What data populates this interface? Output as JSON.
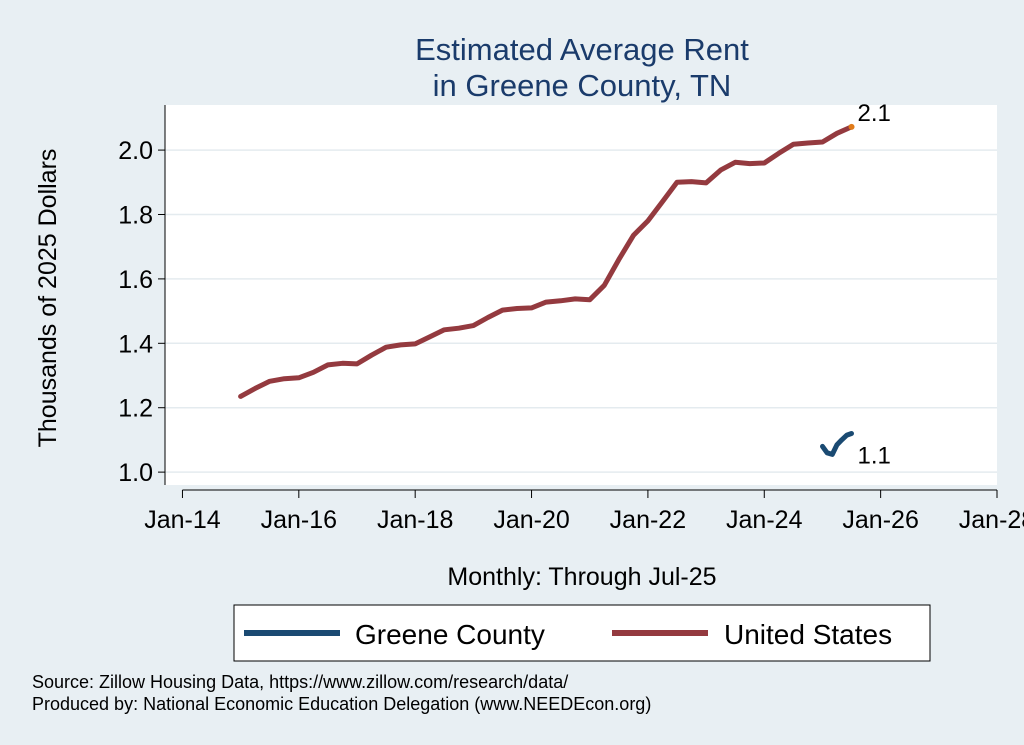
{
  "chart_data": {
    "type": "line",
    "title_lines": [
      "Estimated Average Rent",
      "in Greene County, TN"
    ],
    "xlabel": "Monthly: Through Jul-25",
    "ylabel": "Thousands of 2025 Dollars",
    "xlim": [
      2013.7,
      2028.0
    ],
    "ylim": [
      0.96,
      2.14
    ],
    "x_ticks": [
      {
        "value": 2014,
        "label": "Jan-14"
      },
      {
        "value": 2016,
        "label": "Jan-16"
      },
      {
        "value": 2018,
        "label": "Jan-18"
      },
      {
        "value": 2020,
        "label": "Jan-20"
      },
      {
        "value": 2022,
        "label": "Jan-22"
      },
      {
        "value": 2024,
        "label": "Jan-24"
      },
      {
        "value": 2026,
        "label": "Jan-26"
      },
      {
        "value": 2028,
        "label": "Jan-28"
      }
    ],
    "y_ticks": [
      {
        "value": 1.0,
        "label": "1.0"
      },
      {
        "value": 1.2,
        "label": "1.2"
      },
      {
        "value": 1.4,
        "label": "1.4"
      },
      {
        "value": 1.6,
        "label": "1.6"
      },
      {
        "value": 1.8,
        "label": "1.8"
      },
      {
        "value": 2.0,
        "label": "2.0"
      }
    ],
    "grid": true,
    "legend_position": "bottom",
    "series": [
      {
        "name": "Greene County",
        "color": "#1a4a72",
        "end_label": "1.1",
        "points": [
          [
            2025.0,
            1.08
          ],
          [
            2025.08,
            1.06
          ],
          [
            2025.17,
            1.055
          ],
          [
            2025.25,
            1.085
          ],
          [
            2025.33,
            1.1
          ],
          [
            2025.42,
            1.115
          ],
          [
            2025.5,
            1.12
          ]
        ]
      },
      {
        "name": "United States",
        "color": "#943a3f",
        "end_label": "2.1",
        "end_marker_color": "#e07b1a",
        "points": [
          [
            2015.0,
            1.235
          ],
          [
            2015.25,
            1.26
          ],
          [
            2015.5,
            1.282
          ],
          [
            2015.75,
            1.29
          ],
          [
            2016.0,
            1.293
          ],
          [
            2016.25,
            1.31
          ],
          [
            2016.5,
            1.333
          ],
          [
            2016.75,
            1.338
          ],
          [
            2017.0,
            1.336
          ],
          [
            2017.25,
            1.363
          ],
          [
            2017.5,
            1.388
          ],
          [
            2017.75,
            1.395
          ],
          [
            2018.0,
            1.398
          ],
          [
            2018.25,
            1.42
          ],
          [
            2018.5,
            1.442
          ],
          [
            2018.75,
            1.447
          ],
          [
            2019.0,
            1.455
          ],
          [
            2019.25,
            1.48
          ],
          [
            2019.5,
            1.503
          ],
          [
            2019.75,
            1.508
          ],
          [
            2020.0,
            1.51
          ],
          [
            2020.25,
            1.528
          ],
          [
            2020.5,
            1.532
          ],
          [
            2020.75,
            1.538
          ],
          [
            2021.0,
            1.535
          ],
          [
            2021.25,
            1.58
          ],
          [
            2021.5,
            1.66
          ],
          [
            2021.75,
            1.735
          ],
          [
            2022.0,
            1.78
          ],
          [
            2022.25,
            1.84
          ],
          [
            2022.5,
            1.9
          ],
          [
            2022.75,
            1.902
          ],
          [
            2023.0,
            1.898
          ],
          [
            2023.25,
            1.938
          ],
          [
            2023.5,
            1.962
          ],
          [
            2023.75,
            1.958
          ],
          [
            2024.0,
            1.96
          ],
          [
            2024.25,
            1.99
          ],
          [
            2024.5,
            2.018
          ],
          [
            2024.75,
            2.022
          ],
          [
            2025.0,
            2.025
          ],
          [
            2025.25,
            2.052
          ],
          [
            2025.5,
            2.072
          ]
        ]
      }
    ]
  },
  "source_lines": [
    "Source: Zillow Housing Data, https://www.zillow.com/research/data/",
    "Produced by: National Economic Education Delegation (www.NEEDEcon.org)"
  ]
}
